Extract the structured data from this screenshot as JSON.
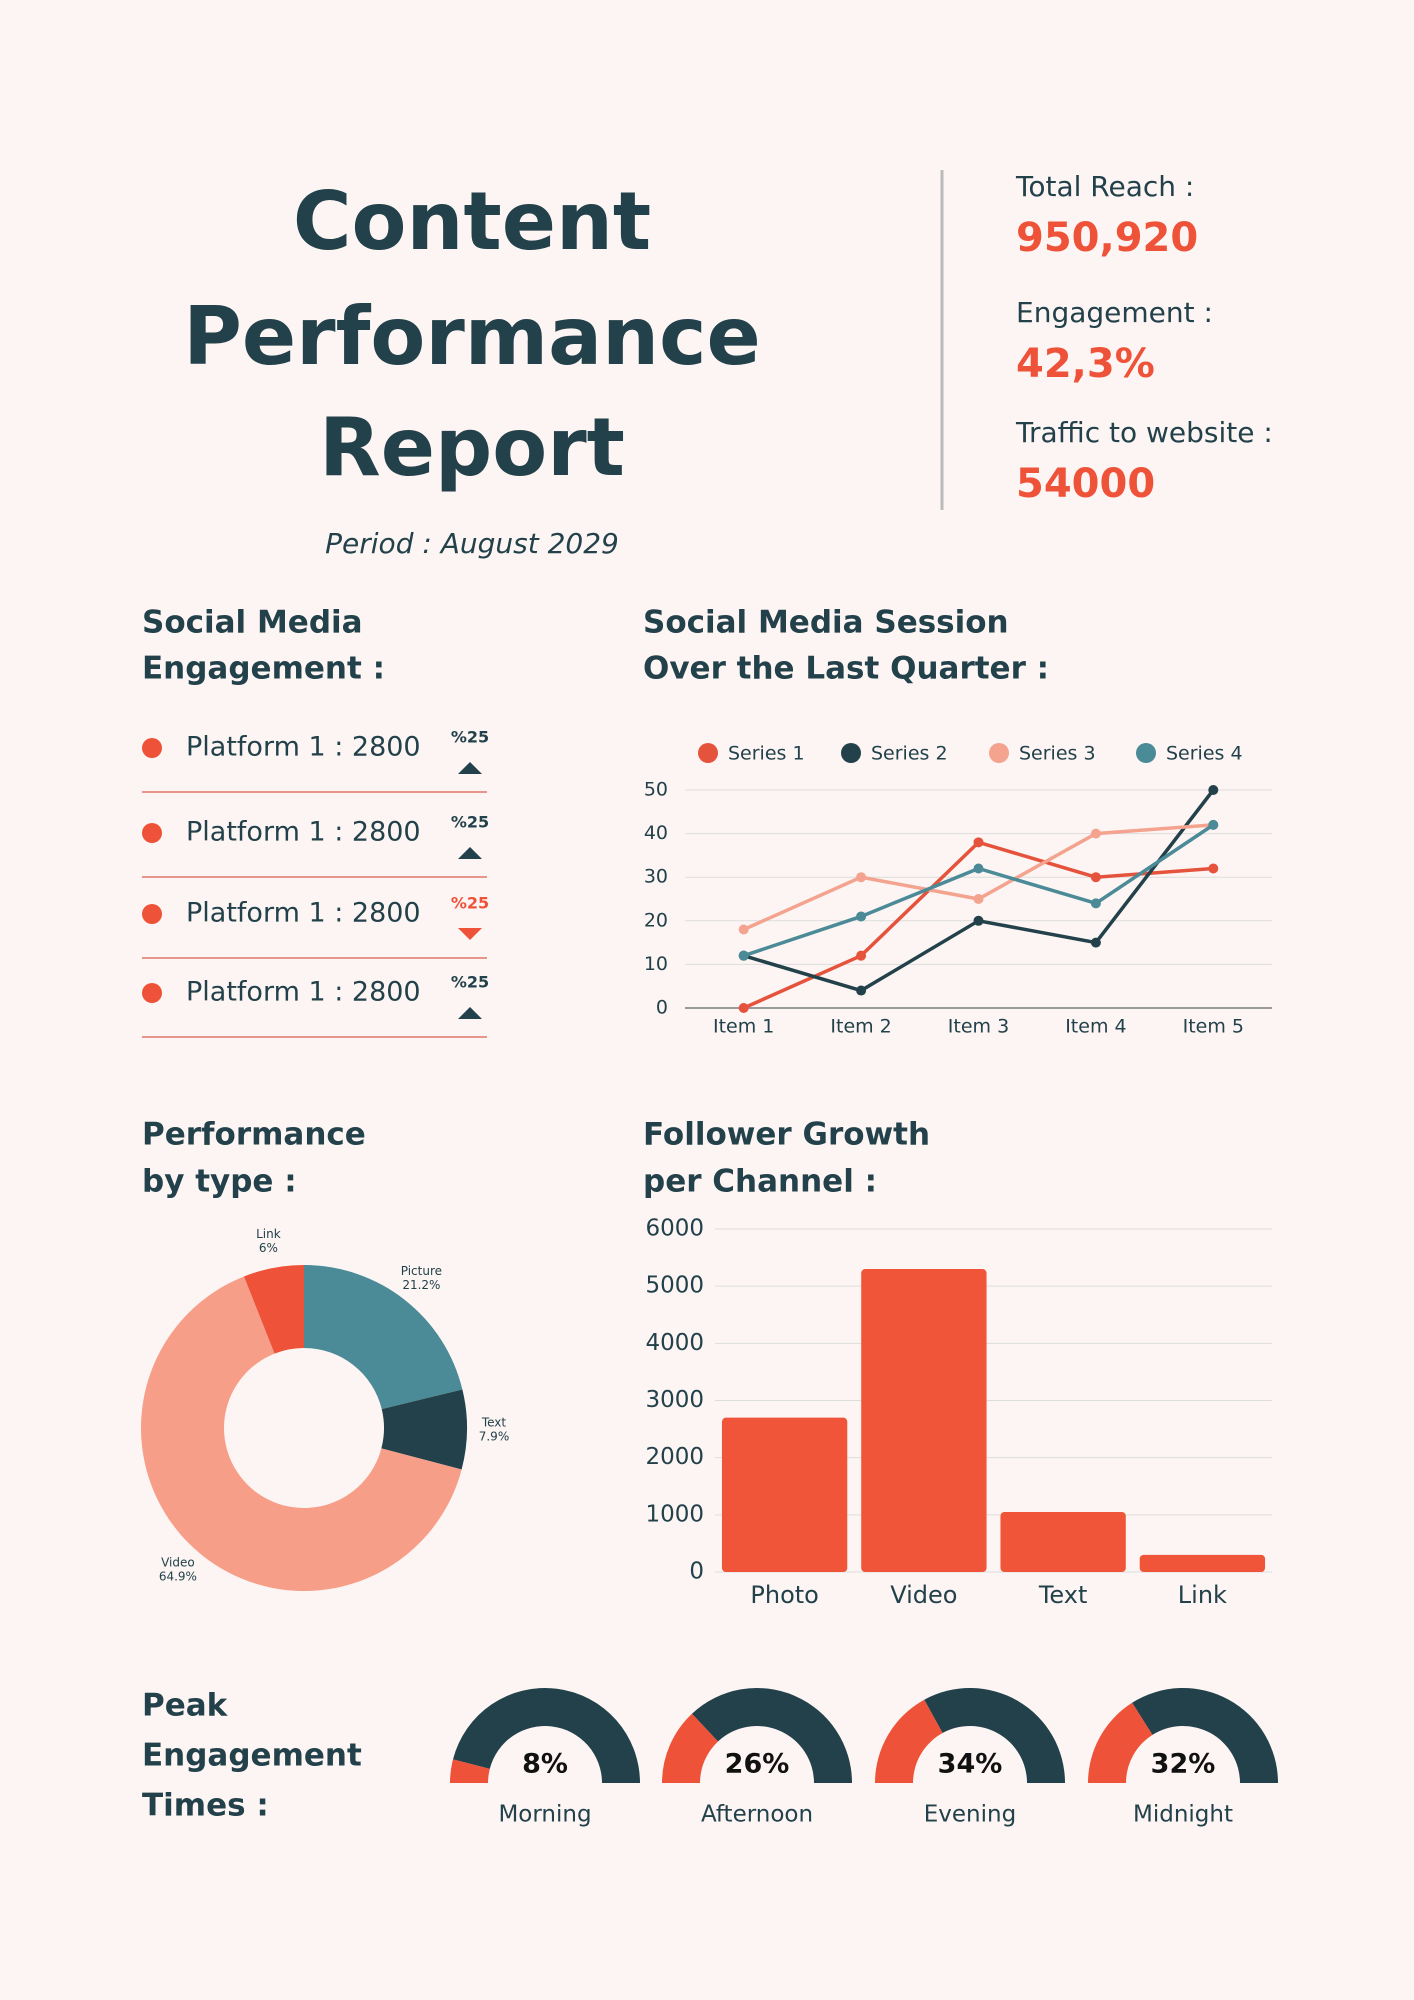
{
  "header": {
    "title": [
      "Content",
      "Performance",
      "Report"
    ],
    "period": "Period : August 2029"
  },
  "kpis": [
    {
      "label": "Total Reach :",
      "value": "950,920"
    },
    {
      "label": "Engagement :",
      "value": "42,3%"
    },
    {
      "label": "Traffic to website :",
      "value": "54000"
    }
  ],
  "platforms": {
    "title": [
      "Social Media",
      "Engagement :"
    ],
    "rows": [
      {
        "label": "Platform 1 : 2800",
        "change": "%25",
        "trend": "up"
      },
      {
        "label": "Platform 1 : 2800",
        "change": "%25",
        "trend": "up"
      },
      {
        "label": "Platform 1 : 2800",
        "change": "%25",
        "trend": "down"
      },
      {
        "label": "Platform 1 : 2800",
        "change": "%25",
        "trend": "up"
      }
    ]
  },
  "peak_title": [
    "Peak",
    "Engagement",
    "Times :"
  ],
  "chart_data": [
    {
      "type": "line",
      "title": [
        "Social Media Session",
        "Over the Last Quarter :"
      ],
      "categories": [
        "Item 1",
        "Item 2",
        "Item 3",
        "Item 4",
        "Item 5"
      ],
      "series": [
        {
          "name": "Series 1",
          "color": "#e5533d",
          "values": [
            0,
            12,
            38,
            30,
            32
          ]
        },
        {
          "name": "Series 2",
          "color": "#22414a",
          "values": [
            12,
            4,
            20,
            15,
            50
          ]
        },
        {
          "name": "Series 3",
          "color": "#f4a38f",
          "values": [
            18,
            30,
            25,
            40,
            42
          ]
        },
        {
          "name": "Series 4",
          "color": "#4b8a97",
          "values": [
            12,
            21,
            32,
            24,
            42
          ]
        }
      ],
      "ylim": [
        0,
        50
      ],
      "yticks": [
        0,
        10,
        20,
        30,
        40,
        50
      ],
      "grid": true,
      "legend": "top"
    },
    {
      "type": "donut",
      "title": [
        "Performance",
        "by type :"
      ],
      "categories": [
        "Picture",
        "Text",
        "Video",
        "Link"
      ],
      "values": [
        21.2,
        7.9,
        64.9,
        6
      ],
      "value_labels": [
        "21.2%",
        "7.9%",
        "64.9%",
        "6%"
      ],
      "colors": [
        "#4b8a97",
        "#22414a",
        "#f79e88",
        "#ee5238"
      ]
    },
    {
      "type": "bar",
      "title": [
        "Follower Growth",
        "per Channel :"
      ],
      "categories": [
        "Photo",
        "Video",
        "Text",
        "Link"
      ],
      "values": [
        2700,
        5300,
        1050,
        300
      ],
      "color": "#f05539",
      "ylim": [
        0,
        6000
      ],
      "yticks": [
        0,
        1000,
        2000,
        3000,
        4000,
        5000,
        6000
      ],
      "grid": true
    },
    {
      "type": "gauge",
      "categories": [
        "Morning",
        "Afternoon",
        "Evening",
        "Midnight"
      ],
      "values": [
        8,
        26,
        34,
        32
      ],
      "value_labels": [
        "8%",
        "26%",
        "34%",
        "32%"
      ],
      "color": "#ee5238",
      "track_color": "#22414a"
    }
  ]
}
